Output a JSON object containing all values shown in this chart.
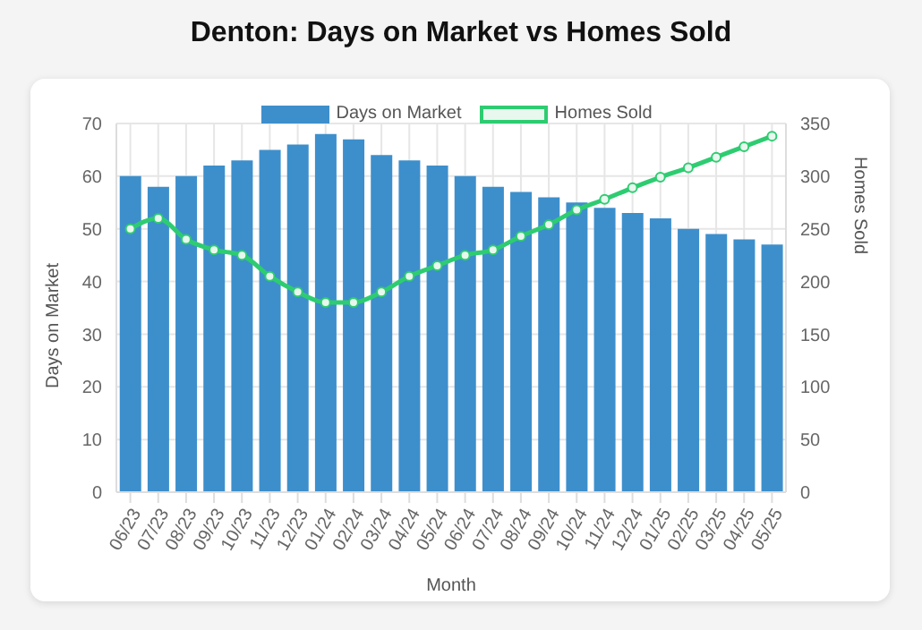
{
  "chart_data": {
    "type": "bar",
    "title": "Denton: Days on Market vs Homes Sold",
    "xlabel": "Month",
    "ylabel": "Days on Market",
    "y2label": "Homes Sold",
    "categories": [
      "06/23",
      "07/23",
      "08/23",
      "09/23",
      "10/23",
      "11/23",
      "12/23",
      "01/24",
      "02/24",
      "03/24",
      "04/24",
      "05/24",
      "06/24",
      "07/24",
      "08/24",
      "09/24",
      "10/24",
      "11/24",
      "12/24",
      "01/25",
      "02/25",
      "03/25",
      "04/25",
      "05/25"
    ],
    "series": [
      {
        "name": "Days on Market",
        "color": "#3d8fcc",
        "values": [
          60,
          58,
          60,
          62,
          63,
          65,
          66,
          68,
          67,
          64,
          63,
          62,
          60,
          58,
          57,
          56,
          55,
          54,
          53,
          52,
          50,
          49,
          48,
          47
        ]
      },
      {
        "name": "Homes Sold",
        "type": "line",
        "axis": "y2",
        "color": "#2ecc71",
        "values": [
          250,
          260,
          240,
          230,
          225,
          205,
          190,
          180,
          180,
          190,
          205,
          215,
          225,
          230,
          243,
          254,
          268,
          278,
          289,
          299,
          308,
          318,
          328,
          338
        ]
      }
    ],
    "ylim": [
      0,
      70
    ],
    "yticks": [
      0,
      10,
      20,
      30,
      40,
      50,
      60,
      70
    ],
    "y2lim": [
      0,
      350
    ],
    "y2ticks": [
      0,
      50,
      100,
      150,
      200,
      250,
      300,
      350
    ],
    "grid": true,
    "legend": "top",
    "marker": "circle",
    "line_style": "solid"
  }
}
